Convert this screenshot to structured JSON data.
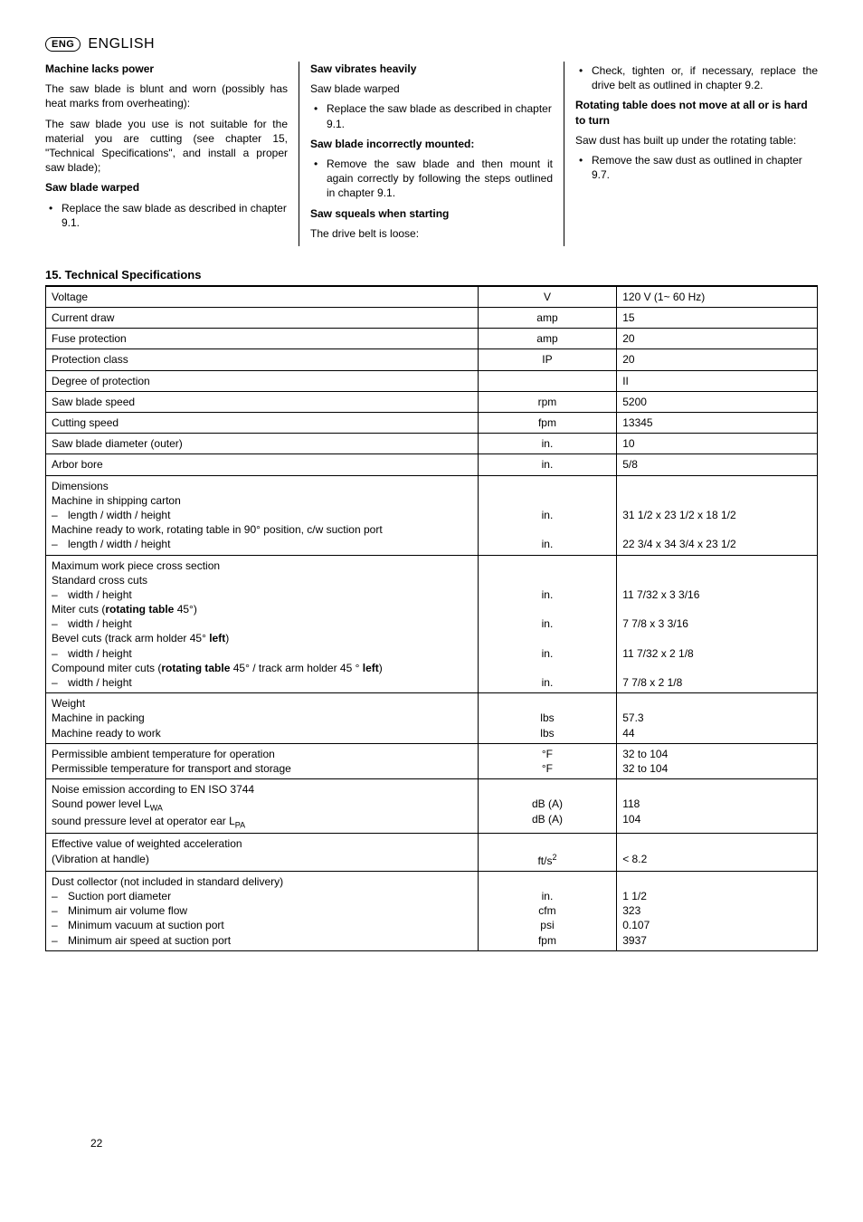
{
  "header": {
    "badge": "ENG",
    "language": "ENGLISH"
  },
  "col1": {
    "t1": "Machine lacks power",
    "p1": "The saw blade is blunt and worn (possibly has heat marks from overheating):",
    "p2": "The saw blade you use is not suitable for the material you are cutting (see chapter 15, \"Technical Specifications\", and install a proper saw blade);",
    "t2": "Saw blade warped",
    "b1": "Replace the saw blade as described in chapter 9.1."
  },
  "col2": {
    "t1": "Saw vibrates heavily",
    "p1": "Saw blade warped",
    "b1": "Replace the saw blade as described in chapter 9.1.",
    "t2": "Saw blade incorrectly mounted:",
    "b2": "Remove the saw blade and then mount it again correctly by following the steps outlined in chapter 9.1.",
    "t3": "Saw squeals when starting",
    "p2": "The drive belt is loose:"
  },
  "col3": {
    "b1": "Check, tighten or, if necessary, replace the drive belt as outlined in chapter 9.2.",
    "t1": "Rotating table does not move at all or is hard to turn",
    "p1": "Saw dust has built up under the rotating table:",
    "b2": "Remove the saw dust as outlined in chapter 9.7."
  },
  "section": "15. Technical Specifications",
  "specs": [
    {
      "label": "Voltage",
      "unit": "V",
      "value": "120 V (1~ 60 Hz)"
    },
    {
      "label": "Current draw",
      "unit": "amp",
      "value": "15"
    },
    {
      "label": "Fuse protection",
      "unit": "amp",
      "value": "20"
    },
    {
      "label": "Protection class",
      "unit": "IP",
      "value": "20"
    },
    {
      "label": "Degree of protection",
      "unit": "",
      "value": "II"
    },
    {
      "label": "Saw blade speed",
      "unit": "rpm",
      "value": "5200"
    },
    {
      "label": "Cutting speed",
      "unit": "fpm",
      "value": "13345"
    },
    {
      "label": "Saw blade  diameter (outer)",
      "unit": "in.",
      "value": "10"
    },
    {
      "label": "Arbor bore",
      "unit": "in.",
      "value": "5/8"
    }
  ],
  "dims": {
    "title": "Dimensions",
    "l1": "Machine in shipping carton",
    "d1": "length / width / height",
    "u1": "in.",
    "v1": "31 1/2 x 23 1/2 x 18 1/2",
    "l2": "Machine ready to work, rotating table in 90° position, c/w suction port",
    "d2": "length / width / height",
    "u2": "in.",
    "v2": "22 3/4 x 34 3/4 x 23 1/2"
  },
  "cross": {
    "title": "Maximum work piece cross section",
    "l1": "Standard cross cuts",
    "d1": "width / height",
    "u1": "in.",
    "v1": "11 7/32 x 3 3/16",
    "l2a": "Miter cuts (",
    "l2b": "rotating table",
    "l2c": " 45°)",
    "d2": "width / height",
    "u2": "in.",
    "v2": "7 7/8 x 3 3/16",
    "l3a": "Bevel cuts (track arm holder 45° ",
    "l3b": "left",
    "l3c": ")",
    "d3": "width / height",
    "u3": "in.",
    "v3": "11 7/32 x 2 1/8",
    "l4a": "Compound miter cuts (",
    "l4b": "rotating table",
    "l4c": " 45° / track arm holder 45 ° ",
    "l4d": "left",
    "l4e": ")",
    "d4": "width / height",
    "u4": "in.",
    "v4": "7 7/8 x 2 1/8"
  },
  "weight": {
    "title": "Weight",
    "l1": "Machine in packing",
    "u1": "lbs",
    "v1": "57.3",
    "l2": "Machine ready to work",
    "u2": "lbs",
    "v2": "44"
  },
  "temp": {
    "l1": "Permissible ambient temperature for operation",
    "u1": "°F",
    "v1": "32 to 104",
    "l2": "Permissible temperature for transport and storage",
    "u2": "°F",
    "v2": "32 to 104"
  },
  "noise": {
    "title": "Noise emission according to EN ISO 3744",
    "l1a": "Sound power level L",
    "l1b": "WA",
    "u1": "dB (A)",
    "v1": "118",
    "l2a": "sound pressure level at operator ear L",
    "l2b": "PA",
    "u2": "dB (A)",
    "v2": "104"
  },
  "vib": {
    "l1": "Effective value of weighted acceleration",
    "l2": "(Vibration at handle)",
    "u": "ft/s",
    "usup": "2",
    "v": "< 8.2"
  },
  "dust": {
    "title": "Dust collector (not included in standard delivery)",
    "d1": "Suction port diameter",
    "u1": "in.",
    "v1": "1 1/2",
    "d2": "Minimum air volume flow",
    "u2": "cfm",
    "v2": "323",
    "d3": "Minimum vacuum at suction port",
    "u3": "psi",
    "v3": "0.107",
    "d4": "Minimum air speed at suction port",
    "u4": "fpm",
    "v4": "3937"
  },
  "page": "22"
}
